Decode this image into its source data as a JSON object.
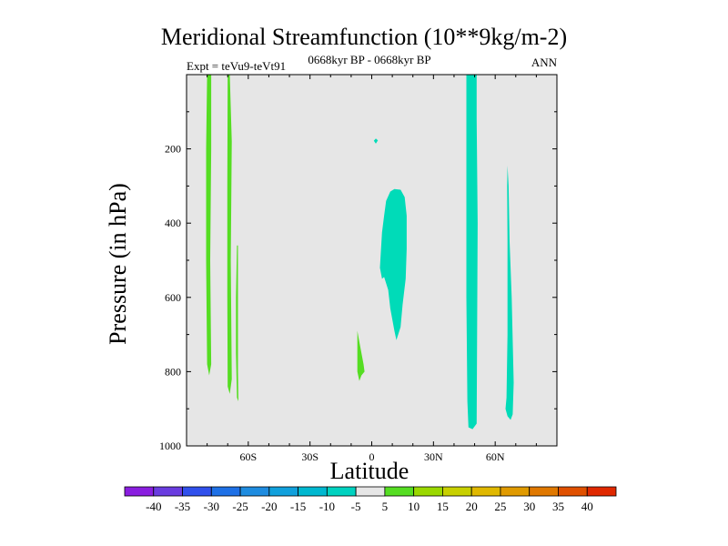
{
  "chart_data": {
    "type": "heatmap",
    "title": "Meridional Streamfunction (10**9kg/m-2)",
    "left_string": "Expt = teVu9-teVt91",
    "center_string": "0668kyr BP - 0668kyr BP",
    "right_string": "ANN",
    "xlabel": "Latitude",
    "ylabel": "Pressure (in hPa)",
    "xlim": [
      -90,
      90
    ],
    "ylim": [
      1000,
      0
    ],
    "x_ticks": [
      {
        "value": -60,
        "label": "60S"
      },
      {
        "value": -30,
        "label": "30S"
      },
      {
        "value": 0,
        "label": "0"
      },
      {
        "value": 30,
        "label": "30N"
      },
      {
        "value": 60,
        "label": "60N"
      }
    ],
    "y_ticks": [
      {
        "value": 200,
        "label": "200"
      },
      {
        "value": 400,
        "label": "400"
      },
      {
        "value": 600,
        "label": "600"
      },
      {
        "value": 800,
        "label": "800"
      },
      {
        "value": 1000,
        "label": "1000"
      }
    ],
    "background_color": "#e6e6e6",
    "regions": [
      {
        "name": "neg-band-50n",
        "level": "-10 to -5",
        "color": "#00dbb8",
        "points": [
          [
            46,
            0
          ],
          [
            51,
            0
          ],
          [
            51,
            120
          ],
          [
            51.5,
            400
          ],
          [
            51,
            940
          ],
          [
            49,
            955
          ],
          [
            47,
            950
          ],
          [
            46.5,
            880
          ],
          [
            46,
            600
          ],
          [
            46,
            200
          ]
        ]
      },
      {
        "name": "neg-lobe-equator",
        "level": "-10 to -5",
        "color": "#00dbb8",
        "points": [
          [
            6,
            380
          ],
          [
            7,
            340
          ],
          [
            9,
            315
          ],
          [
            11,
            308
          ],
          [
            14,
            310
          ],
          [
            16,
            330
          ],
          [
            17,
            380
          ],
          [
            17,
            470
          ],
          [
            16.5,
            550
          ],
          [
            15,
            620
          ],
          [
            14,
            680
          ],
          [
            12,
            715
          ],
          [
            11,
            690
          ],
          [
            9,
            630
          ],
          [
            8,
            580
          ],
          [
            6,
            545
          ],
          [
            5,
            550
          ],
          [
            4,
            520
          ],
          [
            4.5,
            470
          ],
          [
            5,
            425
          ]
        ]
      },
      {
        "name": "neg-band-66n",
        "level": "-10 to -5",
        "color": "#00dbb8",
        "points": [
          [
            66,
            245
          ],
          [
            66.5,
            300
          ],
          [
            67,
            450
          ],
          [
            68,
            600
          ],
          [
            69,
            830
          ],
          [
            68.5,
            915
          ],
          [
            67.5,
            930
          ],
          [
            66,
            920
          ],
          [
            65,
            900
          ],
          [
            65.5,
            870
          ],
          [
            66,
            700
          ],
          [
            66,
            450
          ],
          [
            65.8,
            300
          ]
        ]
      },
      {
        "name": "neg-spot-upper",
        "level": "-10 to -5",
        "color": "#00dbb8",
        "points": [
          [
            1,
            178
          ],
          [
            2,
            172
          ],
          [
            3,
            177
          ],
          [
            2,
            186
          ]
        ]
      },
      {
        "name": "pos-band-78s",
        "level": "5 to 10",
        "color": "#55dd22",
        "points": [
          [
            -80,
            0
          ],
          [
            -78,
            0
          ],
          [
            -78,
            200
          ],
          [
            -78.5,
            500
          ],
          [
            -78,
            780
          ],
          [
            -79,
            810
          ],
          [
            -80,
            780
          ],
          [
            -80.5,
            500
          ],
          [
            -80.5,
            200
          ]
        ]
      },
      {
        "name": "pos-band-70s",
        "level": "5 to 10",
        "color": "#55dd22",
        "points": [
          [
            -70,
            0
          ],
          [
            -69,
            0
          ],
          [
            -68,
            180
          ],
          [
            -68.5,
            500
          ],
          [
            -68,
            820
          ],
          [
            -69,
            860
          ],
          [
            -70,
            840
          ],
          [
            -70.2,
            600
          ],
          [
            -70.2,
            300
          ]
        ]
      },
      {
        "name": "pos-band-65s",
        "level": "5 to 10",
        "color": "#55dd22",
        "points": [
          [
            -65.5,
            460
          ],
          [
            -65,
            460
          ],
          [
            -65,
            800
          ],
          [
            -64.8,
            880
          ],
          [
            -65.5,
            870
          ],
          [
            -66,
            750
          ],
          [
            -66,
            600
          ]
        ]
      },
      {
        "name": "pos-spot-7s",
        "level": "5 to 10",
        "color": "#55dd22",
        "points": [
          [
            -7,
            690
          ],
          [
            -6,
            720
          ],
          [
            -4,
            780
          ],
          [
            -3.5,
            800
          ],
          [
            -5,
            810
          ],
          [
            -6,
            825
          ],
          [
            -7,
            800
          ]
        ]
      }
    ],
    "colorbar": {
      "levels": [
        -40,
        -35,
        -30,
        -25,
        -20,
        -15,
        -10,
        -5,
        5,
        10,
        15,
        20,
        25,
        30,
        35,
        40
      ],
      "colors": [
        "#8a1ee0",
        "#6a3ce0",
        "#3050ec",
        "#1e70e6",
        "#1e8ce0",
        "#10a0dc",
        "#00b8d0",
        "#00d2c0",
        "#e6e6e6",
        "#55dd22",
        "#9ad800",
        "#c8d000",
        "#e0b800",
        "#e09a00",
        "#e07800",
        "#e05000",
        "#e02800"
      ]
    }
  }
}
